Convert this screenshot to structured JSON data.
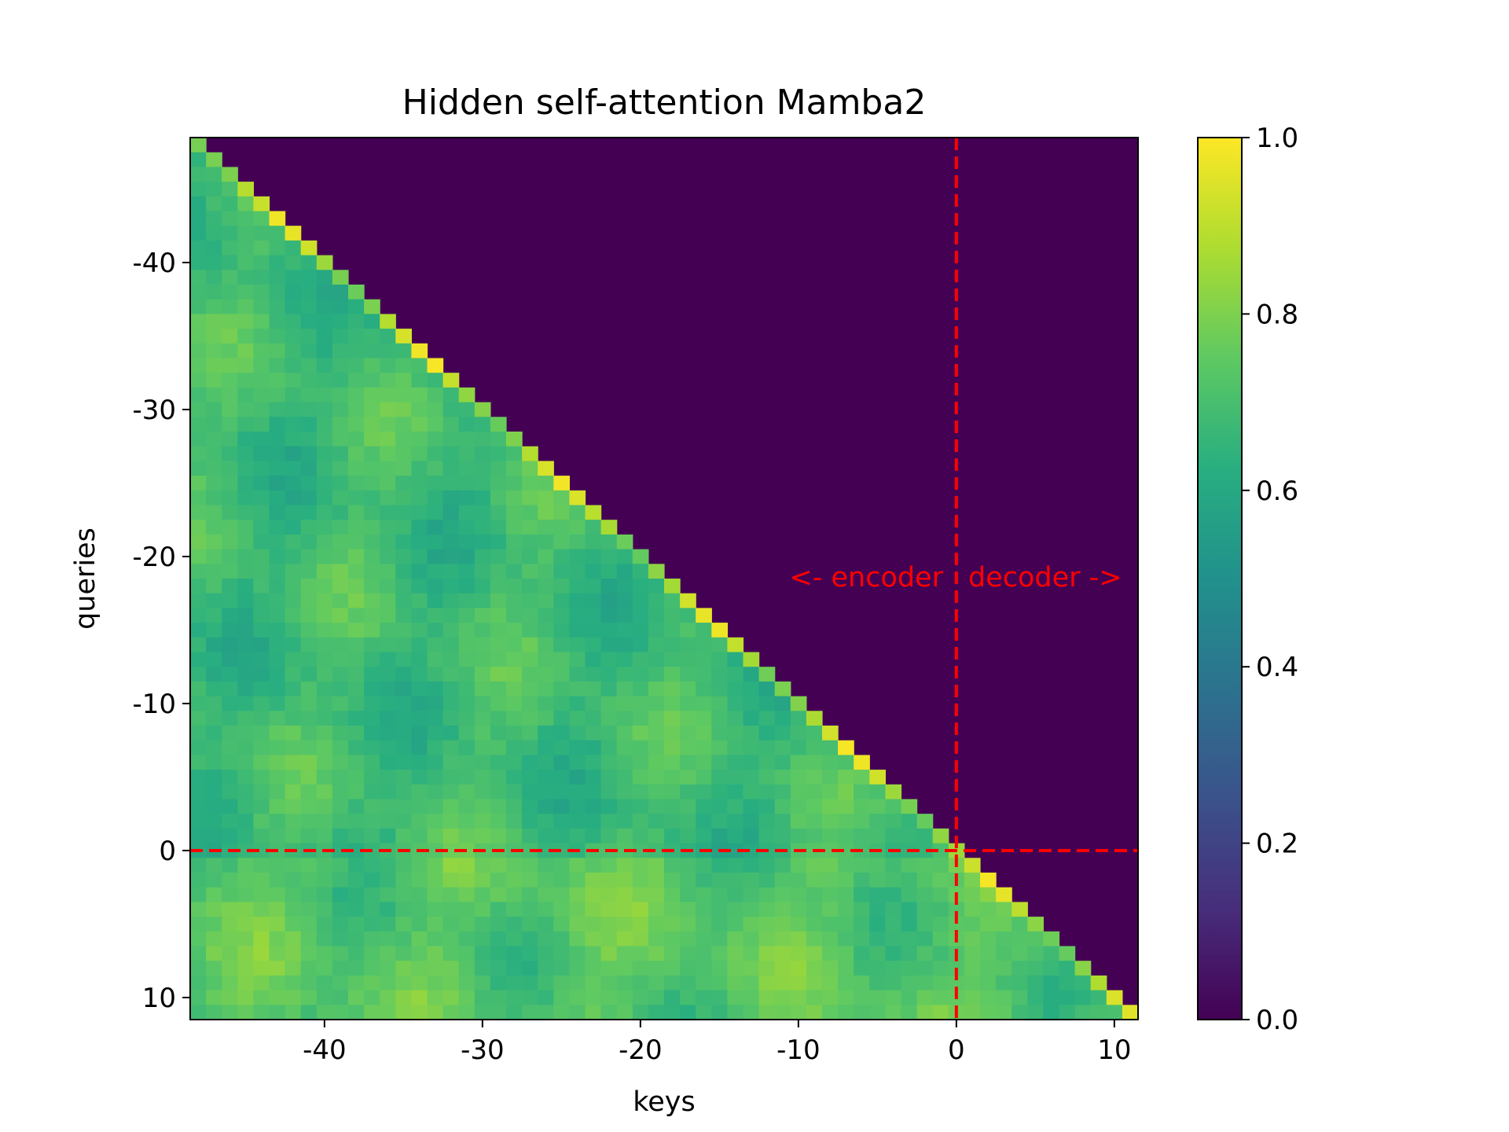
{
  "chart_data": {
    "type": "heatmap",
    "title": "Hidden self-attention Mamba2",
    "xlabel": "keys",
    "ylabel": "queries",
    "x_range": [
      -48.5,
      11.5
    ],
    "y_range": [
      -48.5,
      11.5
    ],
    "y_inverted": true,
    "x_ticks": [
      -40,
      -30,
      -20,
      -10,
      0,
      10
    ],
    "y_ticks": [
      -40,
      -30,
      -20,
      -10,
      0,
      10
    ],
    "x_tick_labels": [
      "-40",
      "-30",
      "-20",
      "-10",
      "0",
      "10"
    ],
    "y_tick_labels": [
      "-40",
      "-30",
      "-20",
      "-10",
      "0",
      "10"
    ],
    "mask": "upper-triangular (key > query) = 0.0",
    "value_range": [
      0.0,
      1.0
    ],
    "colormap": "viridis",
    "colorbar": {
      "ticks": [
        0.0,
        0.2,
        0.4,
        0.6,
        0.8,
        1.0
      ],
      "tick_labels": [
        "0.0",
        "0.2",
        "0.4",
        "0.6",
        "0.8",
        "1.0"
      ]
    },
    "separator_lines": {
      "x": 0,
      "y": 0,
      "color": "#ff0000",
      "style": "dashed"
    },
    "annotations": {
      "left": "<- encoder",
      "right": "decoder ->",
      "color": "#ff0000"
    },
    "typical_values": {
      "lower_triangle_mean": 0.68,
      "diagonal": 0.85,
      "peak": 1.0
    },
    "grid": false
  }
}
